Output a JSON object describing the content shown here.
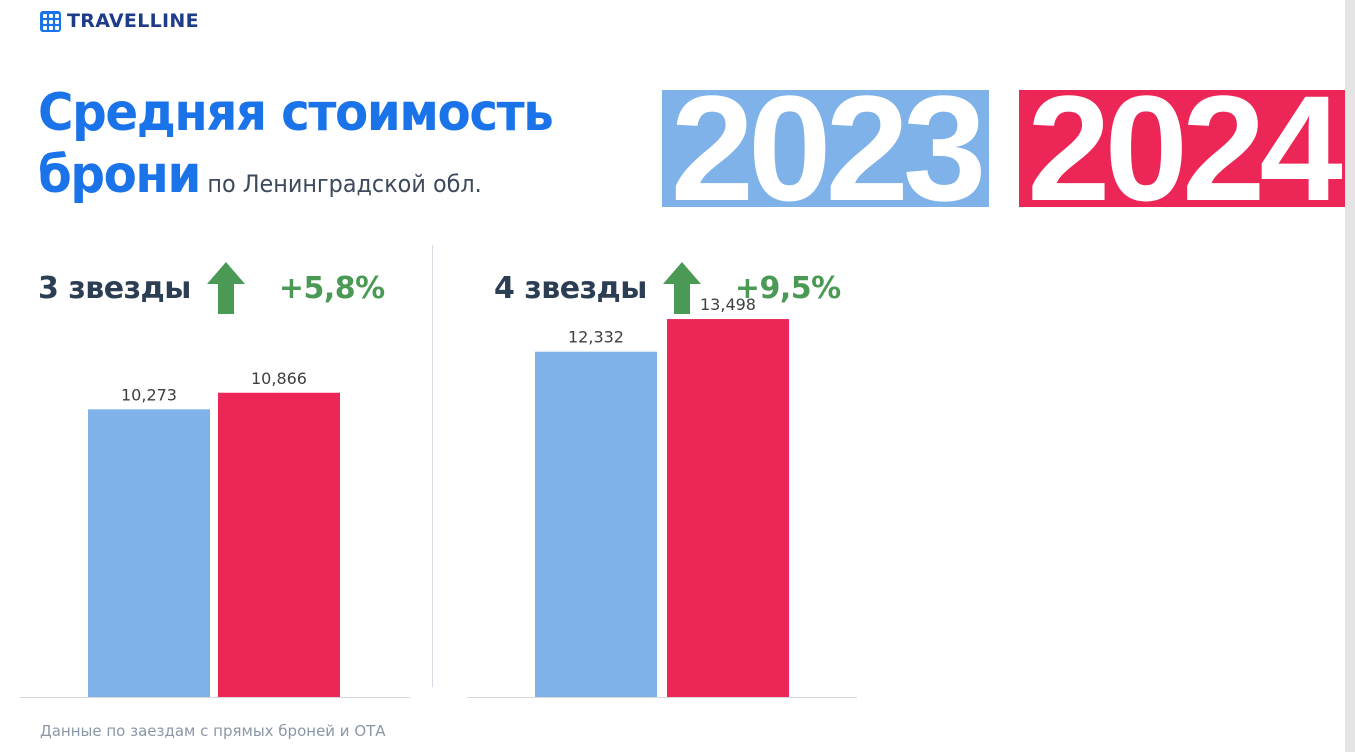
{
  "logo": {
    "text": "TRAVELLINE"
  },
  "title": {
    "line1": "Средняя стоимость",
    "line2": "брони",
    "subtitle": "по Ленинградской обл."
  },
  "years": [
    "2023",
    "2024"
  ],
  "colors": {
    "y2023": "#7fb2e8",
    "y2024": "#ec2757",
    "title": "#1a73e8",
    "growth": "#4a9a55"
  },
  "panels": [
    {
      "label": "3 звезды",
      "change": "+5,8%",
      "icon": "arrow-up-icon"
    },
    {
      "label": "4 звезды",
      "change": "+9,5%",
      "icon": "arrow-up-icon"
    }
  ],
  "chart_data": [
    {
      "type": "bar",
      "categories": [
        "2023",
        "2024"
      ],
      "values": [
        10273,
        10866
      ],
      "value_labels": [
        "10,273",
        "10,866"
      ],
      "title": "3 звезды",
      "ylim": [
        0,
        15000
      ]
    },
    {
      "type": "bar",
      "categories": [
        "2023",
        "2024"
      ],
      "values": [
        12332,
        13498
      ],
      "value_labels": [
        "12,332",
        "13,498"
      ],
      "title": "4 звезды",
      "ylim": [
        0,
        15000
      ]
    }
  ],
  "footnote": "Данные по заездам с прямых броней и ОТА"
}
